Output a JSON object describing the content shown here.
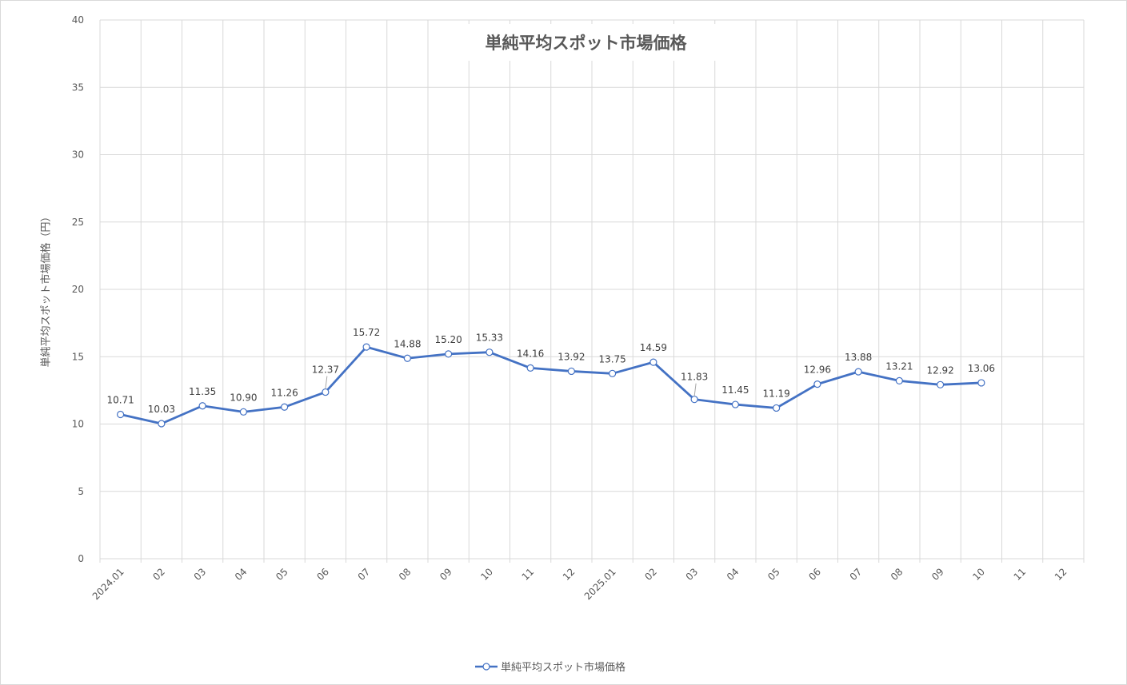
{
  "chart_data": {
    "type": "line",
    "title": "単純平均スポット市場価格",
    "xlabel": "",
    "ylabel": "単純平均スポット市場価格（円）",
    "ylim": [
      0,
      40
    ],
    "yticks": [
      0,
      5,
      10,
      15,
      20,
      25,
      30,
      35,
      40
    ],
    "grid": true,
    "legend_position": "bottom",
    "categories": [
      "2024.01",
      "02",
      "03",
      "04",
      "05",
      "06",
      "07",
      "08",
      "09",
      "10",
      "11",
      "12",
      "2025.01",
      "02",
      "03",
      "04",
      "05",
      "06",
      "07",
      "08",
      "09",
      "10",
      "11",
      "12"
    ],
    "series": [
      {
        "name": "単純平均スポット市場価格",
        "color": "#4472c4",
        "values": [
          10.71,
          10.03,
          11.35,
          10.9,
          11.26,
          12.37,
          15.72,
          14.88,
          15.2,
          15.33,
          14.16,
          13.92,
          13.75,
          14.59,
          11.83,
          11.45,
          11.19,
          12.96,
          13.88,
          13.21,
          12.92,
          13.06,
          null,
          null
        ],
        "labels": [
          "10.71",
          "10.03",
          "11.35",
          "10.90",
          "11.26",
          "12.37",
          "15.72",
          "14.88",
          "15.20",
          "15.33",
          "14.16",
          "13.92",
          "13.75",
          "14.59",
          "11.83",
          "11.45",
          "11.19",
          "12.96",
          "13.88",
          "13.21",
          "12.92",
          "13.06"
        ]
      }
    ]
  },
  "legend": {
    "label": "単純平均スポット市場価格"
  }
}
